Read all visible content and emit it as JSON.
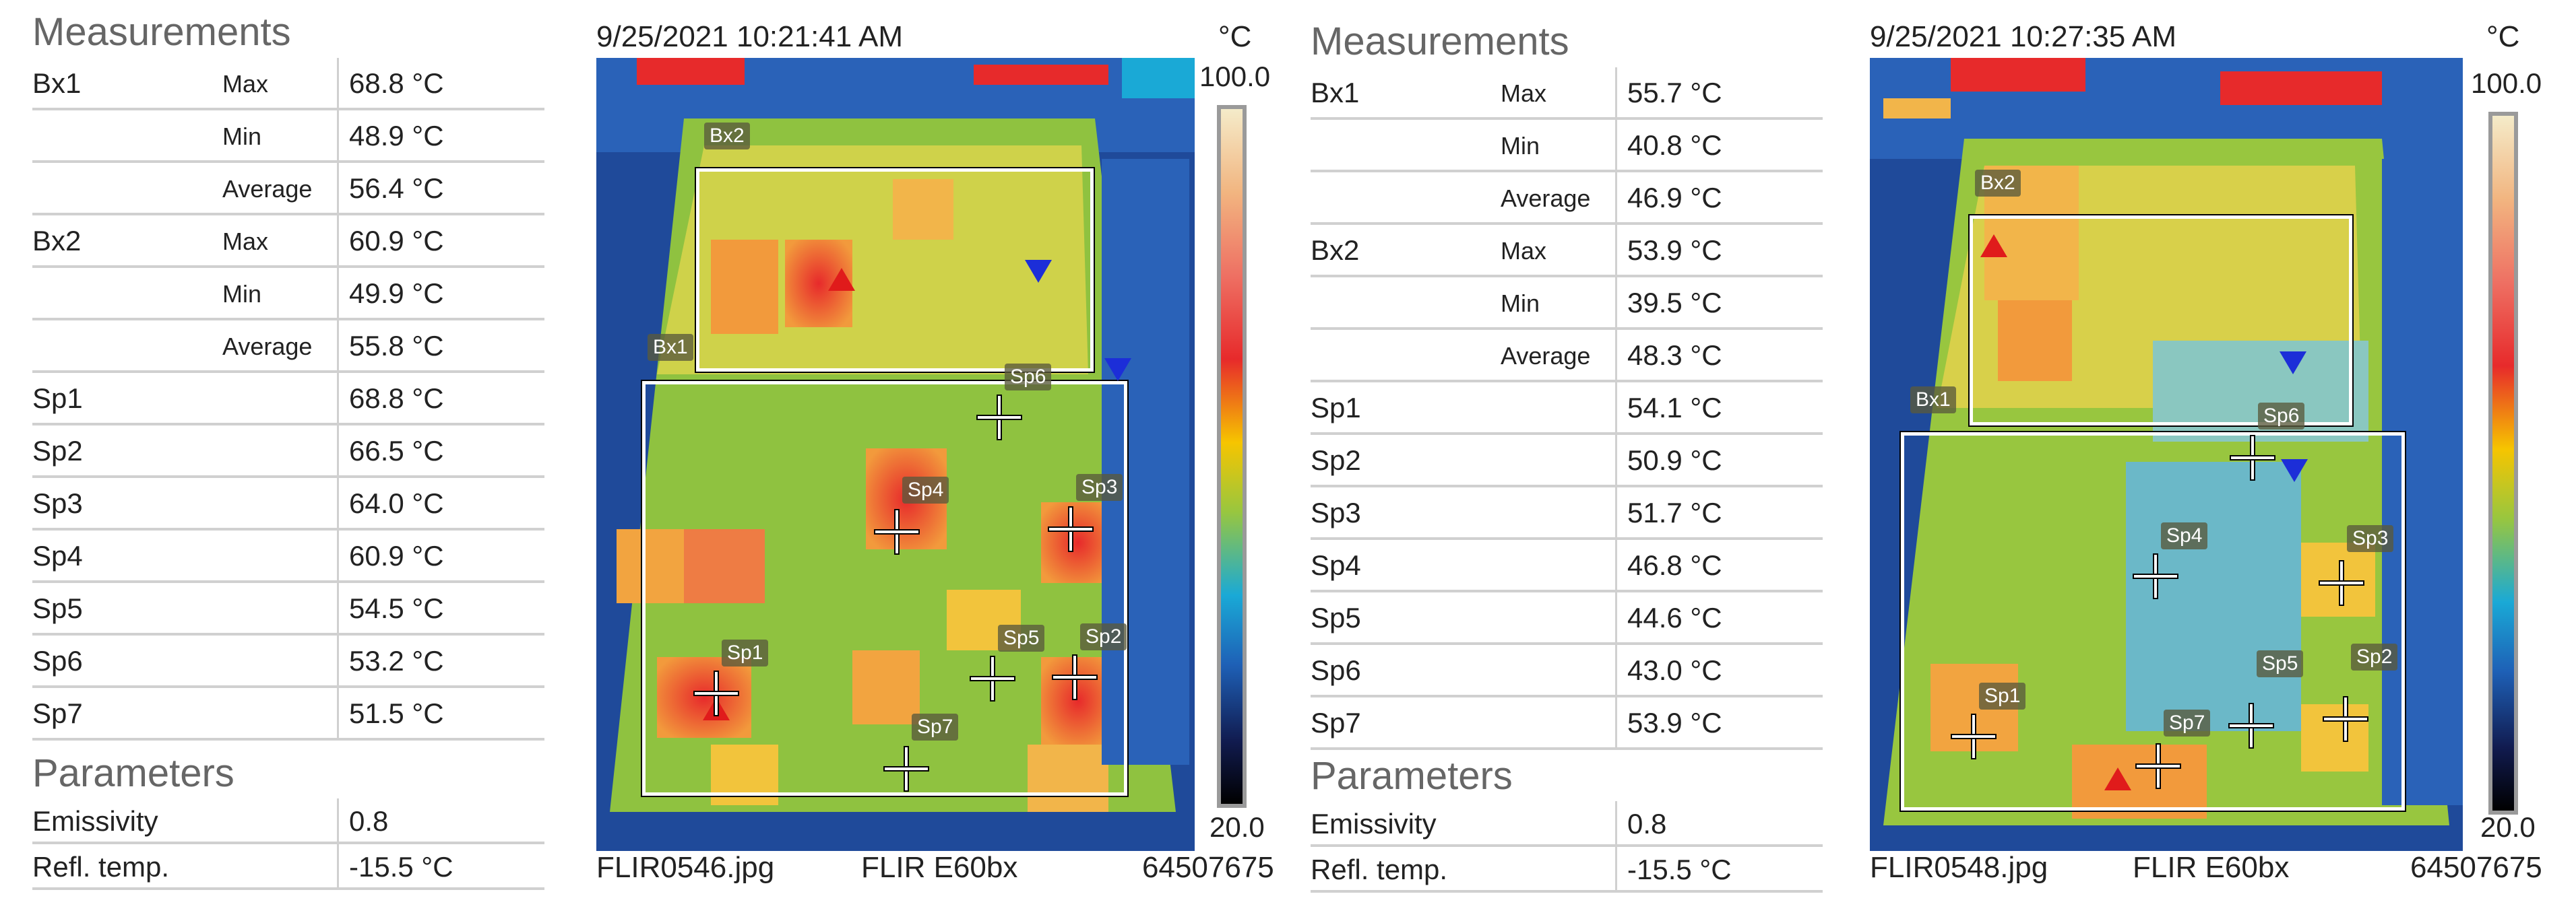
{
  "reports": [
    {
      "measurements_title": "Measurements",
      "measurements": [
        {
          "label": "Bx1",
          "stat": "Max",
          "value": "68.8 °C"
        },
        {
          "label": "",
          "stat": "Min",
          "value": "48.9 °C"
        },
        {
          "label": "",
          "stat": "Average",
          "value": "56.4 °C"
        },
        {
          "label": "Bx2",
          "stat": "Max",
          "value": "60.9 °C"
        },
        {
          "label": "",
          "stat": "Min",
          "value": "49.9 °C"
        },
        {
          "label": "",
          "stat": "Average",
          "value": "55.8 °C"
        },
        {
          "label": "Sp1",
          "stat": "",
          "value": "68.8 °C"
        },
        {
          "label": "Sp2",
          "stat": "",
          "value": "66.5 °C"
        },
        {
          "label": "Sp3",
          "stat": "",
          "value": "64.0 °C"
        },
        {
          "label": "Sp4",
          "stat": "",
          "value": "60.9 °C"
        },
        {
          "label": "Sp5",
          "stat": "",
          "value": "54.5 °C"
        },
        {
          "label": "Sp6",
          "stat": "",
          "value": "53.2 °C"
        },
        {
          "label": "Sp7",
          "stat": "",
          "value": "51.5 °C"
        }
      ],
      "parameters_title": "Parameters",
      "parameters": [
        {
          "label": "Emissivity",
          "value": "0.8"
        },
        {
          "label": "Refl. temp.",
          "value": "-15.5 °C"
        }
      ],
      "timestamp": "9/25/2021 10:21:41 AM",
      "unit": "°C",
      "scale_max": "100.0",
      "scale_min": "20.0",
      "file": "FLIR0546.jpg",
      "camera": "FLIR E60bx",
      "serial": "64507675"
    },
    {
      "measurements_title": "Measurements",
      "measurements": [
        {
          "label": "Bx1",
          "stat": "Max",
          "value": "55.7 °C"
        },
        {
          "label": "",
          "stat": "Min",
          "value": "40.8 °C"
        },
        {
          "label": "",
          "stat": "Average",
          "value": "46.9 °C"
        },
        {
          "label": "Bx2",
          "stat": "Max",
          "value": "53.9 °C"
        },
        {
          "label": "",
          "stat": "Min",
          "value": "39.5 °C"
        },
        {
          "label": "",
          "stat": "Average",
          "value": "48.3 °C"
        },
        {
          "label": "Sp1",
          "stat": "",
          "value": "54.1 °C"
        },
        {
          "label": "Sp2",
          "stat": "",
          "value": "50.9 °C"
        },
        {
          "label": "Sp3",
          "stat": "",
          "value": "51.7 °C"
        },
        {
          "label": "Sp4",
          "stat": "",
          "value": "46.8 °C"
        },
        {
          "label": "Sp5",
          "stat": "",
          "value": "44.6 °C"
        },
        {
          "label": "Sp6",
          "stat": "",
          "value": "43.0 °C"
        },
        {
          "label": "Sp7",
          "stat": "",
          "value": "53.9 °C"
        }
      ],
      "parameters_title": "Parameters",
      "parameters": [
        {
          "label": "Emissivity",
          "value": "0.8"
        },
        {
          "label": "Refl. temp.",
          "value": "-15.5 °C"
        }
      ],
      "timestamp": "9/25/2021 10:27:35 AM",
      "unit": "°C",
      "scale_max": "100.0",
      "scale_min": "20.0",
      "file": "FLIR0548.jpg",
      "camera": "FLIR E60bx",
      "serial": "64507675"
    }
  ],
  "overlays": {
    "bx1": "Bx1",
    "bx2": "Bx2",
    "sp1": "Sp1",
    "sp2": "Sp2",
    "sp3": "Sp3",
    "sp4": "Sp4",
    "sp5": "Sp5",
    "sp6": "Sp6",
    "sp7": "Sp7"
  },
  "colors": {
    "hot": "#e72a2b",
    "warm": "#f6c500",
    "mid": "#98c63f",
    "cool": "#1aa9d6",
    "cold": "#111b4f",
    "max_marker": "#e01b1b",
    "min_marker": "#1c2ed8"
  }
}
